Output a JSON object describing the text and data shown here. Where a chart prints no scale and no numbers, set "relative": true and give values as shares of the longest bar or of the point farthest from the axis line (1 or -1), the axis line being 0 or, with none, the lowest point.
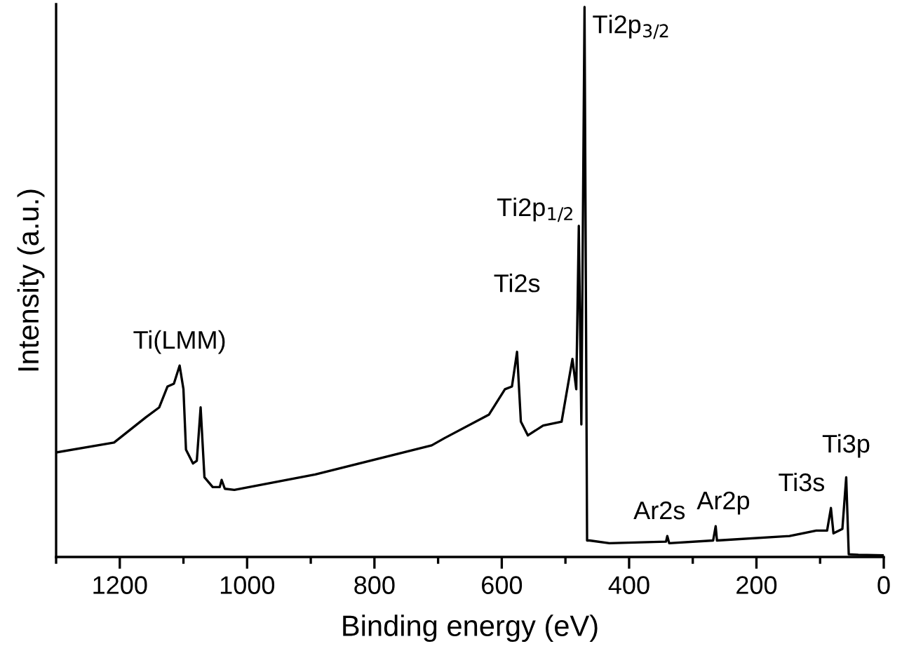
{
  "chart_data": {
    "type": "line",
    "relative": true,
    "xlabel": "Binding energy (eV)",
    "ylabel": "Intensity (a.u.)",
    "xlim": [
      1300,
      0
    ],
    "xticks": [
      {
        "value": 1300,
        "label": null
      },
      1200,
      {
        "value": 1100,
        "label": null
      },
      1000,
      {
        "value": 900,
        "label": null
      },
      800,
      {
        "value": 700,
        "label": null
      },
      600,
      {
        "value": 500,
        "label": null
      },
      400,
      {
        "value": 300,
        "label": null
      },
      200,
      {
        "value": 100,
        "label": null
      },
      0
    ],
    "grid": false,
    "legend": false,
    "marker": "none",
    "line_style": "solid",
    "series": [
      {
        "color": "#000000",
        "x": [
          1300,
          1209,
          1159,
          1138,
          1125,
          1115,
          1106,
          1100,
          1096,
          1085,
          1079,
          1073,
          1067,
          1054,
          1043,
          1040,
          1035,
          1020,
          893,
          710,
          690,
          620,
          595,
          584,
          576,
          570,
          559,
          535,
          506,
          489,
          483,
          479,
          475,
          470,
          466,
          462,
          431,
          342,
          340,
          337,
          268,
          264,
          262,
          148,
          106,
          89,
          83,
          79,
          65,
          59,
          55,
          40,
          0
        ],
        "values": [
          0.19,
          0.208,
          0.254,
          0.272,
          0.31,
          0.315,
          0.348,
          0.305,
          0.195,
          0.17,
          0.175,
          0.272,
          0.145,
          0.127,
          0.127,
          0.14,
          0.124,
          0.122,
          0.15,
          0.203,
          0.216,
          0.259,
          0.305,
          0.31,
          0.373,
          0.246,
          0.221,
          0.239,
          0.246,
          0.36,
          0.305,
          0.602,
          0.241,
          1.0,
          0.03,
          0.03,
          0.025,
          0.028,
          0.038,
          0.025,
          0.03,
          0.056,
          0.03,
          0.038,
          0.048,
          0.048,
          0.089,
          0.043,
          0.051,
          0.145,
          0.005,
          0.004,
          0.003
        ]
      }
    ],
    "annotations": [
      {
        "text": "Ti(LMM)",
        "x": 1106,
        "y": 0.348
      },
      {
        "text": "Ti2s",
        "x": 576,
        "y": 0.373
      },
      {
        "text": "Ti2p$_{1/2}$",
        "x": 479,
        "y": 0.602
      },
      {
        "text": "Ti2p$_{3/2}$",
        "x": 470,
        "y": 1.0
      },
      {
        "text": "Ar2s",
        "x": 340,
        "y": 0.038
      },
      {
        "text": "Ar2p",
        "x": 264,
        "y": 0.056
      },
      {
        "text": "Ti3s",
        "x": 83,
        "y": 0.089
      },
      {
        "text": "Ti3p",
        "x": 59,
        "y": 0.145
      }
    ]
  }
}
